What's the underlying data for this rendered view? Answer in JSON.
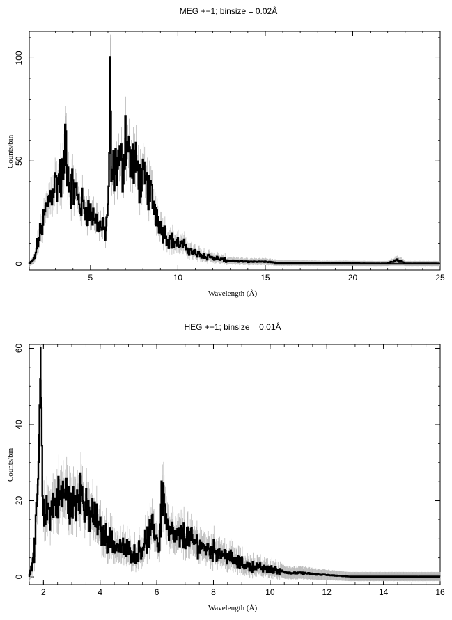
{
  "chart_data": [
    {
      "type": "line",
      "title": "MEG +−1; binsize = 0.02Å",
      "xlabel": "Wavelength (Å)",
      "ylabel": "Counts/bin",
      "xlim": [
        1.5,
        25
      ],
      "ylim": [
        -3,
        113
      ],
      "xticks": [
        5,
        10,
        15,
        20,
        25
      ],
      "yticks": [
        0,
        50,
        100
      ],
      "grid": false,
      "series": [
        {
          "values_note": "binned spectrum counts per bin (approximate envelope read from plot)",
          "x": [
            1.5,
            1.8,
            2.0,
            2.3,
            2.6,
            2.9,
            3.2,
            3.5,
            3.6,
            3.8,
            4.1,
            4.4,
            4.7,
            5.0,
            5.3,
            5.6,
            5.9,
            6.0,
            6.1,
            6.15,
            6.2,
            6.3,
            6.6,
            6.9,
            7.0,
            7.3,
            7.6,
            7.9,
            8.2,
            8.5,
            8.8,
            9.1,
            9.5,
            10.0,
            10.5,
            11.0,
            11.5,
            12.0,
            12.5,
            13.0,
            14.0,
            15.0,
            16.0,
            17.0,
            18.0,
            19.0,
            20.0,
            21.0,
            22.0,
            22.6,
            23.0,
            24.0,
            25.0
          ],
          "y": [
            0,
            2,
            10,
            20,
            30,
            38,
            40,
            44,
            63,
            38,
            36,
            30,
            27,
            25,
            22,
            18,
            15,
            28,
            45,
            99,
            42,
            43,
            50,
            46,
            65,
            50,
            47,
            40,
            38,
            33,
            25,
            17,
            12,
            10,
            8,
            5,
            4,
            3,
            2,
            1.5,
            1,
            1,
            0.5,
            0.5,
            0.3,
            0.3,
            0.3,
            0.2,
            0.2,
            2,
            0.2,
            0.2,
            0.2
          ]
        }
      ]
    },
    {
      "type": "line",
      "title": "HEG +−1; binsize = 0.01Å",
      "xlabel": "Wavelength (Å)",
      "ylabel": "Counts/bin",
      "xlim": [
        1.5,
        16
      ],
      "ylim": [
        -2,
        61
      ],
      "xticks": [
        2,
        4,
        6,
        8,
        10,
        12,
        14,
        16
      ],
      "yticks": [
        0,
        20,
        40,
        60
      ],
      "grid": false,
      "series": [
        {
          "values_note": "binned spectrum counts per bin (approximate envelope read from plot)",
          "x": [
            1.5,
            1.6,
            1.7,
            1.8,
            1.9,
            2.0,
            2.2,
            2.5,
            2.8,
            3.0,
            3.3,
            3.5,
            3.8,
            4.0,
            4.3,
            4.6,
            5.0,
            5.3,
            5.6,
            5.9,
            6.1,
            6.2,
            6.4,
            6.7,
            7.0,
            7.3,
            7.6,
            8.0,
            8.4,
            8.8,
            9.2,
            9.6,
            10.0,
            10.4,
            10.8,
            11.2,
            11.6,
            12.0,
            12.4,
            12.8,
            13.5,
            14.5,
            15.5,
            16.0
          ],
          "y": [
            0,
            3,
            8,
            18,
            52,
            15,
            18,
            20,
            22,
            18,
            24,
            17,
            16,
            12,
            10,
            8,
            7,
            6,
            9,
            13,
            8,
            24,
            12,
            10,
            11,
            9,
            8,
            7,
            6,
            4,
            3,
            2.5,
            2,
            1.5,
            1,
            1,
            0.7,
            0.5,
            0.3,
            0.1,
            0.1,
            0.1,
            0.1,
            0.1
          ]
        }
      ]
    }
  ]
}
